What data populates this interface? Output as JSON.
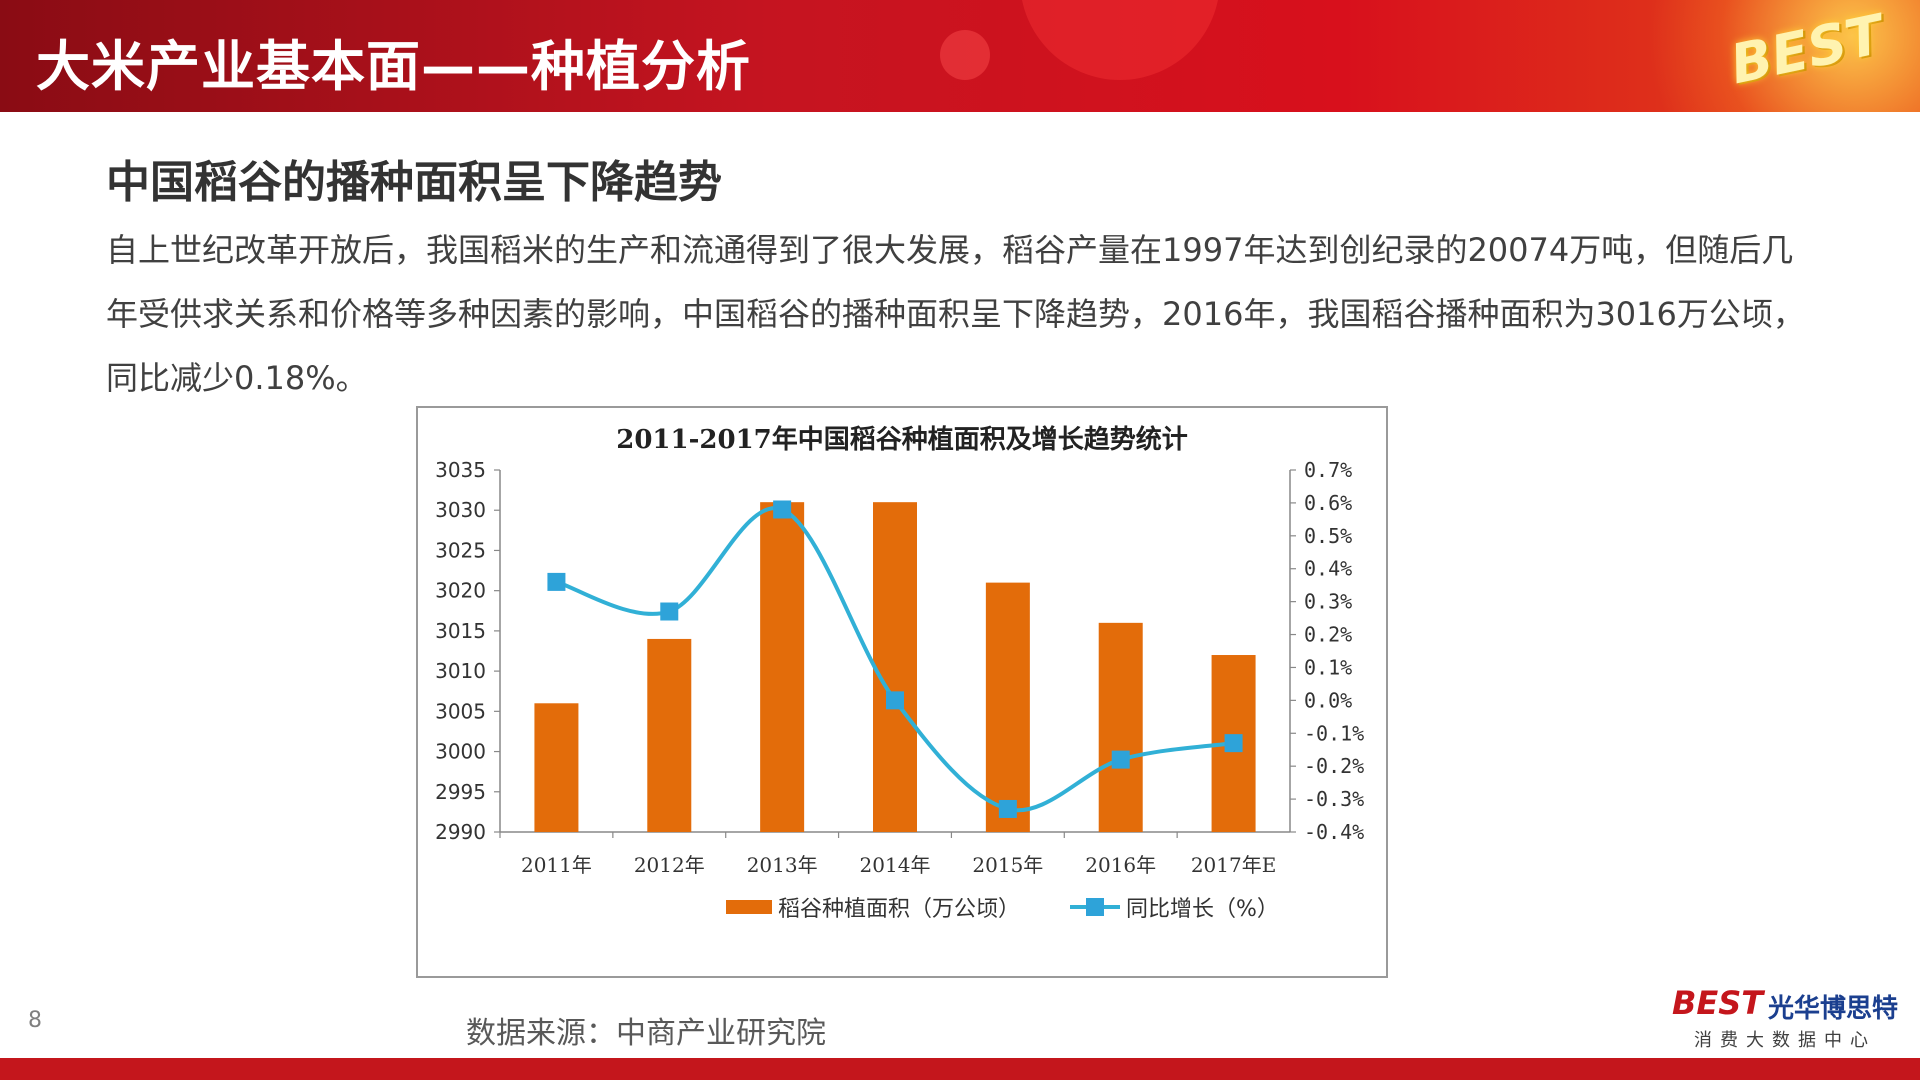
{
  "header": {
    "title": "大米产业基本面——种植分析",
    "logo_text": "BEST"
  },
  "section": {
    "title": "中国稻谷的播种面积呈下降趋势"
  },
  "body_text": "自上世纪改革开放后，我国稻米的生产和流通得到了很大发展，稻谷产量在1997年达到创纪录的20074万吨，但随后几年受供求关系和价格等多种因素的影响，中国稻谷的播种面积呈下降趋势，2016年，我国稻谷播种面积为3016万公顷，同比减少0.18%。",
  "chart_data": {
    "type": "bar",
    "title": "2011-2017年中国稻谷种植面积及增长趋势统计",
    "categories": [
      "2011年",
      "2012年",
      "2013年",
      "2014年",
      "2015年",
      "2016年",
      "2017年E"
    ],
    "series": [
      {
        "name": "稻谷种植面积（万公顷）",
        "type": "bar",
        "axis": "left",
        "values": [
          3006,
          3014,
          3031,
          3031,
          3021,
          3016,
          3012
        ]
      },
      {
        "name": "同比增长（%）",
        "type": "line",
        "axis": "right",
        "values": [
          0.36,
          0.27,
          0.58,
          0.0,
          -0.33,
          -0.18,
          -0.13
        ]
      }
    ],
    "ylim_left": [
      2990,
      3035
    ],
    "yticks_left": [
      "3035",
      "3030",
      "3025",
      "3020",
      "3015",
      "3010",
      "3005",
      "3000",
      "2995",
      "2990"
    ],
    "ylim_right": [
      -0.4,
      0.7
    ],
    "yticks_right": [
      "0.7%",
      "0.6%",
      "0.5%",
      "0.4%",
      "0.3%",
      "0.2%",
      "0.1%",
      "0.0%",
      "-0.1%",
      "-0.2%",
      "-0.3%",
      "-0.4%"
    ],
    "legend_position": "bottom",
    "colors": {
      "bar": "#e36c0a",
      "line": "#31b0d6",
      "marker": "#2ea3d9"
    }
  },
  "source": "数据来源：中商产业研究院",
  "page_number": "8",
  "brand": {
    "logo": "BEST",
    "name": "光华博思特",
    "subtitle": "消费大数据中心"
  }
}
